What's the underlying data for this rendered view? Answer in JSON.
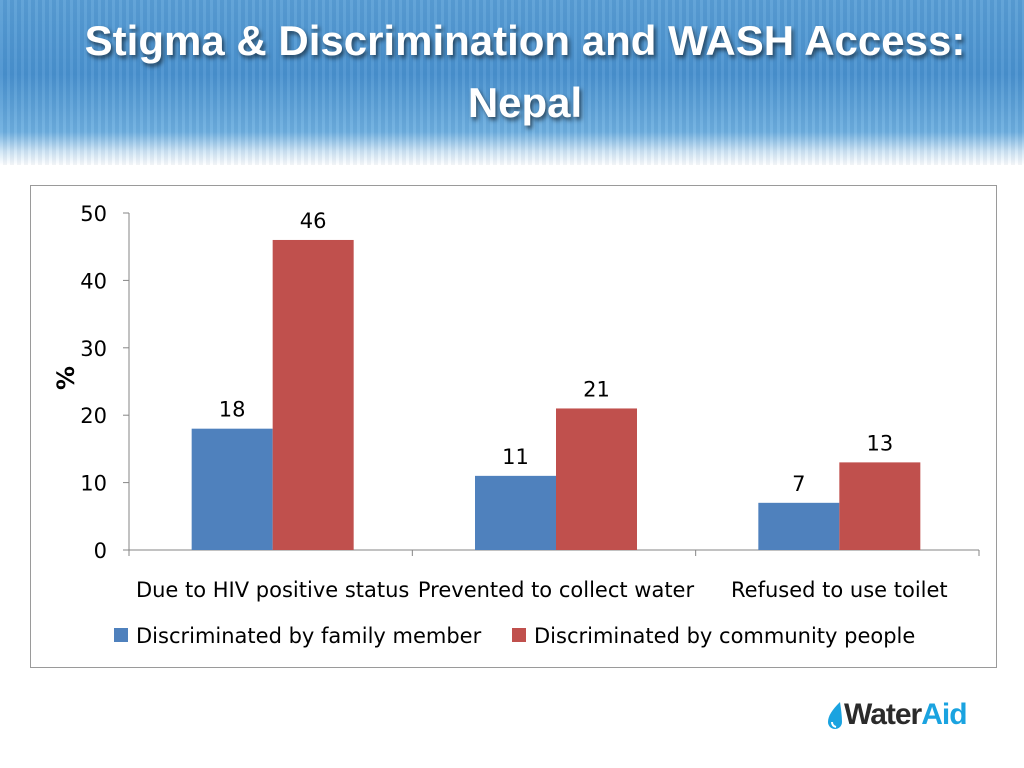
{
  "slide": {
    "title_line1": "Stigma & Discrimination and WASH Access:",
    "title_line2": "Nepal",
    "logo": {
      "part1": "Water",
      "part2": "Aid",
      "color_dark": "#2b2b2b",
      "color_accent": "#1aa3e0"
    }
  },
  "chart_data": {
    "type": "bar",
    "title": "",
    "xlabel": "",
    "ylabel": "%",
    "ylim": [
      0,
      50
    ],
    "yticks": [
      0,
      10,
      20,
      30,
      40,
      50
    ],
    "grid": false,
    "legend_position": "bottom",
    "categories": [
      "Due to HIV positive status",
      "Prevented to collect water",
      "Refused to use toilet"
    ],
    "series": [
      {
        "name": "Discriminated by family member",
        "color": "#4f81bd",
        "values": [
          18,
          11,
          7
        ]
      },
      {
        "name": "Discriminated by community people",
        "color": "#c0504d",
        "values": [
          46,
          21,
          13
        ]
      }
    ]
  }
}
